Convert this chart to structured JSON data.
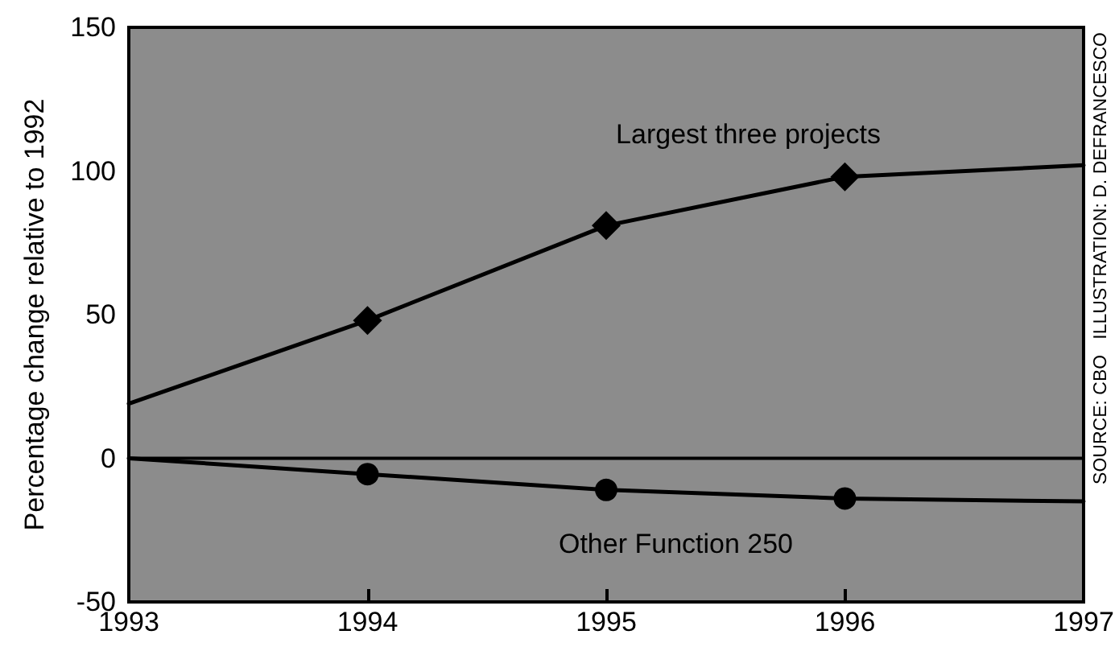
{
  "chart_data": {
    "type": "line",
    "ylabel": "Percentage change relative to 1992",
    "x": [
      1993,
      1994,
      1995,
      1996,
      1997
    ],
    "xlim": [
      1993,
      1997
    ],
    "xticks": [
      1993,
      1994,
      1995,
      1996,
      1997
    ],
    "ylim": [
      -50,
      150
    ],
    "yticks": [
      -50,
      0,
      50,
      100,
      150
    ],
    "series": [
      {
        "name": "Largest three projects",
        "color": "#000000",
        "marker": "diamond",
        "values": [
          19,
          48,
          81,
          98,
          102
        ]
      },
      {
        "name": "Other Function 250",
        "color": "#000000",
        "marker": "circle",
        "values": [
          0,
          -5.5,
          -11,
          -14,
          -15
        ]
      }
    ],
    "ref_lines": [
      {
        "axis": "y",
        "value": 0,
        "color": "#000000",
        "line_style": "solid"
      }
    ],
    "annotations": [
      "SOURCE: CBO   ILLUSTRATION: D. DEFRANCESCO"
    ],
    "grid": false,
    "legend": false,
    "line_style": "solid"
  }
}
